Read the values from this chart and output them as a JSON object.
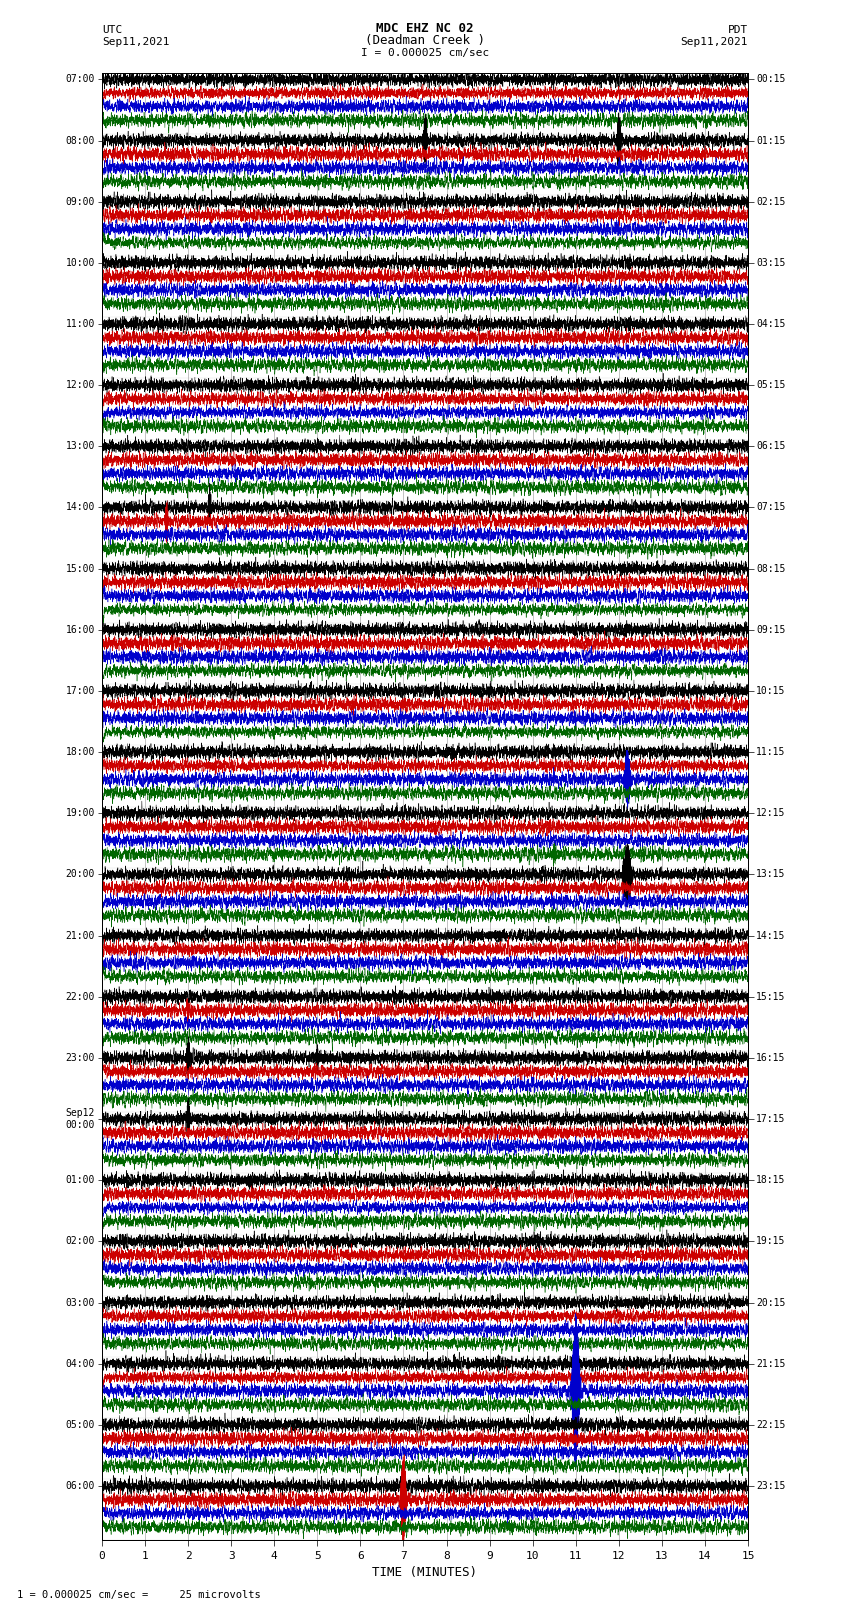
{
  "title_line1": "MDC EHZ NC 02",
  "title_line2": "(Deadman Creek )",
  "title_line3": "I = 0.000025 cm/sec",
  "left_header1": "UTC",
  "left_header2": "Sep11,2021",
  "right_header1": "PDT",
  "right_header2": "Sep11,2021",
  "xlabel": "TIME (MINUTES)",
  "footer": "1 = 0.000025 cm/sec =     25 microvolts",
  "bg_color": "#ffffff",
  "line_colors": [
    "#000000",
    "#cc0000",
    "#0000cc",
    "#006600"
  ],
  "utc_labels": [
    "07:00",
    "08:00",
    "09:00",
    "10:00",
    "11:00",
    "12:00",
    "13:00",
    "14:00",
    "15:00",
    "16:00",
    "17:00",
    "18:00",
    "19:00",
    "20:00",
    "21:00",
    "22:00",
    "23:00",
    "Sep12\n00:00",
    "01:00",
    "02:00",
    "03:00",
    "04:00",
    "05:00",
    "06:00"
  ],
  "pdt_labels": [
    "00:15",
    "01:15",
    "02:15",
    "03:15",
    "04:15",
    "05:15",
    "06:15",
    "07:15",
    "08:15",
    "09:15",
    "10:15",
    "11:15",
    "12:15",
    "13:15",
    "14:15",
    "15:15",
    "16:15",
    "17:15",
    "18:15",
    "19:15",
    "20:15",
    "21:15",
    "22:15",
    "23:15"
  ],
  "xmin": 0,
  "xmax": 15,
  "xticks": [
    0,
    1,
    2,
    3,
    4,
    5,
    6,
    7,
    8,
    9,
    10,
    11,
    12,
    13,
    14,
    15
  ],
  "num_rows": 24,
  "traces_per_row": 4,
  "seed": 12345
}
